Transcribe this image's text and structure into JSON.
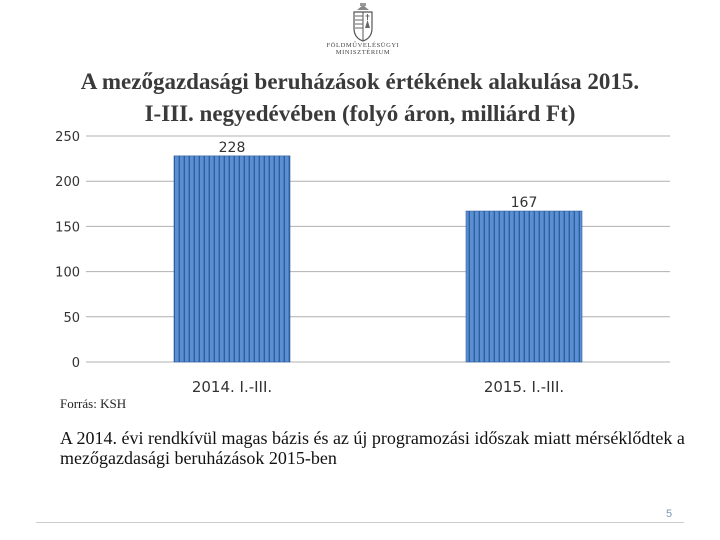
{
  "logo": {
    "line1": "FÖLDMŰVELÉSÜGYI",
    "line2": "MINISZTÉRIUM"
  },
  "title_line1": "A mezőgazdasági beruházások értékének alakulása 2015.",
  "title_line2": "I-III. negyedévében (folyó áron, milliárd Ft)",
  "source": "Forrás: KSH",
  "note": "A 2014. évi rendkívül magas bázis és az új programozási időszak miatt mérséklődtek a mezőgazdasági beruházások 2015-ben",
  "page_number": "5",
  "chart_data": {
    "type": "bar",
    "title": "A mezőgazdasági beruházások értékének alakulása 2015. I-III. negyedévében (folyó áron, milliárd Ft)",
    "categories": [
      "2014. I.-III.",
      "2015. I.-III."
    ],
    "values": [
      228,
      167
    ],
    "value_labels": [
      "228",
      "167"
    ],
    "ylim": [
      0,
      250
    ],
    "yticks": [
      0,
      50,
      100,
      150,
      200,
      250
    ],
    "ytick_labels": [
      "0",
      "50",
      "100",
      "150",
      "200",
      "250"
    ],
    "grid": true,
    "legend": "none",
    "bar_color": "#5b8fd4",
    "bar_stripe_color": "#2e5f9e"
  }
}
